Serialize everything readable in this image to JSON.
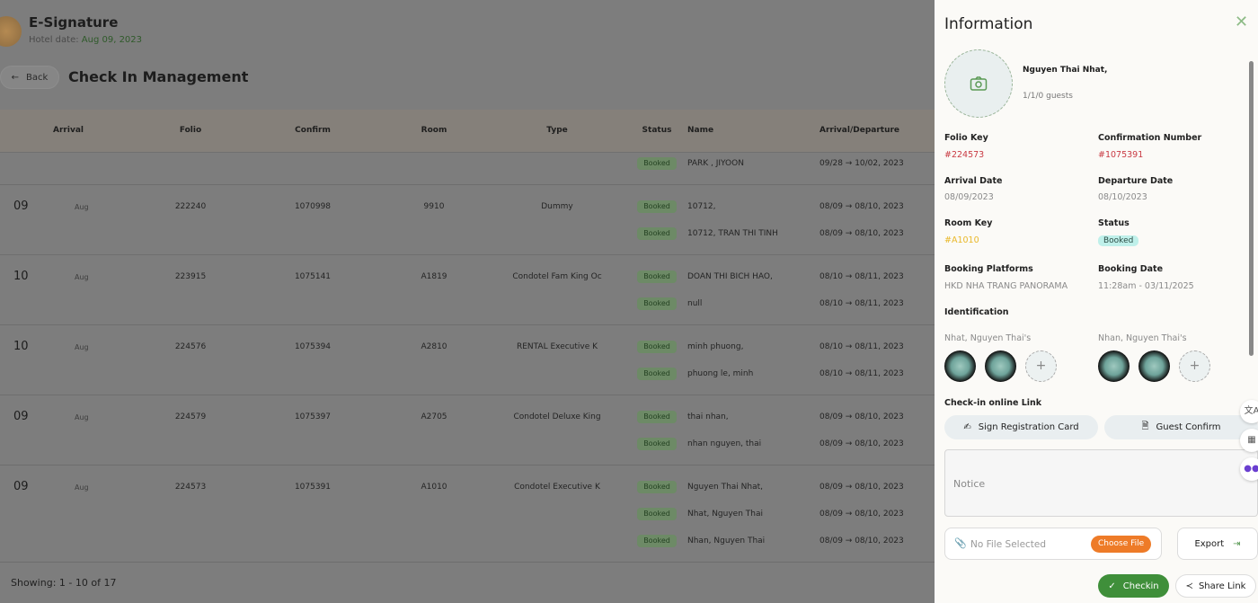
{
  "app": {
    "title": "E-Signature",
    "hotel_date_label": "Hotel date:",
    "hotel_date": "Aug 09, 2023"
  },
  "page": {
    "back_label": "Back",
    "title": "Check In Management",
    "showing": "Showing: 1 - 10 of 17"
  },
  "table": {
    "headers": {
      "arrival": "Arrival",
      "folio": "Folio",
      "confirm": "Confirm",
      "room": "Room",
      "type": "Type",
      "status": "Status",
      "name": "Name",
      "arrdep": "Arrival/Departure"
    },
    "groups": [
      {
        "day": "",
        "month": "",
        "folio": "",
        "confirm": "",
        "room": "",
        "type": "",
        "guests": [
          {
            "status": "Booked",
            "name": "PARK , JIYOON",
            "dates": "09/28 → 10/02, 2023"
          }
        ]
      },
      {
        "day": "09",
        "month": "Aug",
        "folio": "222240",
        "confirm": "1070998",
        "room": "9910",
        "type": "Dummy",
        "guests": [
          {
            "status": "Booked",
            "name": "10712,",
            "dates": "08/09 → 08/10, 2023"
          },
          {
            "status": "Booked",
            "name": "10712, TRAN THI TINH",
            "dates": "08/09 → 08/10, 2023"
          }
        ]
      },
      {
        "day": "10",
        "month": "Aug",
        "folio": "223915",
        "confirm": "1075141",
        "room": "A1819",
        "type": "Condotel Fam King Oc",
        "guests": [
          {
            "status": "Booked",
            "name": "DOAN THI BICH HAO,",
            "dates": "08/10 → 08/11, 2023"
          },
          {
            "status": "Booked",
            "name": "null",
            "dates": "08/10 → 08/11, 2023"
          }
        ]
      },
      {
        "day": "10",
        "month": "Aug",
        "folio": "224576",
        "confirm": "1075394",
        "room": "A2810",
        "type": "RENTAL Executive K",
        "guests": [
          {
            "status": "Booked",
            "name": "minh phuong,",
            "dates": "08/10 → 08/11, 2023"
          },
          {
            "status": "Booked",
            "name": "phuong le, minh",
            "dates": "08/10 → 08/11, 2023"
          }
        ]
      },
      {
        "day": "09",
        "month": "Aug",
        "folio": "224579",
        "confirm": "1075397",
        "room": "A2705",
        "type": "Condotel Deluxe King",
        "guests": [
          {
            "status": "Booked",
            "name": "thai nhan,",
            "dates": "08/09 → 08/10, 2023"
          },
          {
            "status": "Booked",
            "name": "nhan nguyen, thai",
            "dates": "08/09 → 08/10, 2023"
          }
        ]
      },
      {
        "day": "09",
        "month": "Aug",
        "folio": "224573",
        "confirm": "1075391",
        "room": "A1010",
        "type": "Condotel Executive K",
        "guests": [
          {
            "status": "Booked",
            "name": "Nguyen Thai Nhat,",
            "dates": "08/09 → 08/10, 2023"
          },
          {
            "status": "Booked",
            "name": "Nhat, Nguyen Thai",
            "dates": "08/09 → 08/10, 2023"
          },
          {
            "status": "Booked",
            "name": "Nhan, Nguyen Thai",
            "dates": "08/09 → 08/10, 2023"
          }
        ]
      }
    ]
  },
  "panel": {
    "title": "Information",
    "guest_name": "Nguyen Thai Nhat,",
    "guest_count": "1/1/0 guests",
    "folio_key_label": "Folio Key",
    "folio_key": "#224573",
    "confirmation_label": "Confirmation Number",
    "confirmation": "#1075391",
    "arrival_label": "Arrival Date",
    "arrival": "08/09/2023",
    "departure_label": "Departure Date",
    "departure": "08/10/2023",
    "room_key_label": "Room Key",
    "room_key": "#A1010",
    "status_label": "Status",
    "status": "Booked",
    "platform_label": "Booking Platforms",
    "platform": "HKD NHA TRANG PANORAMA",
    "booking_date_label": "Booking Date",
    "booking_date": "11:28am - 03/11/2025",
    "identification_label": "Identification",
    "id_owner_1": "Nhat, Nguyen Thai's",
    "id_owner_2": "Nhan, Nguyen Thai's",
    "checkin_link_label": "Check-in online Link",
    "sign_label": "Sign Registration Card",
    "guest_confirm_label": "Guest Confirm",
    "notice_placeholder": "Notice",
    "no_file": "No File Selected",
    "choose_file": "Choose File",
    "export_label": "Export",
    "checkin_label": "Checkin",
    "share_label": "Share Link"
  },
  "colors": {
    "accent_green": "#3f8f3a",
    "orange": "#ee7b28",
    "red": "#c93a43",
    "room_key": "#e9b829",
    "status_badge": "#bff0ea"
  }
}
